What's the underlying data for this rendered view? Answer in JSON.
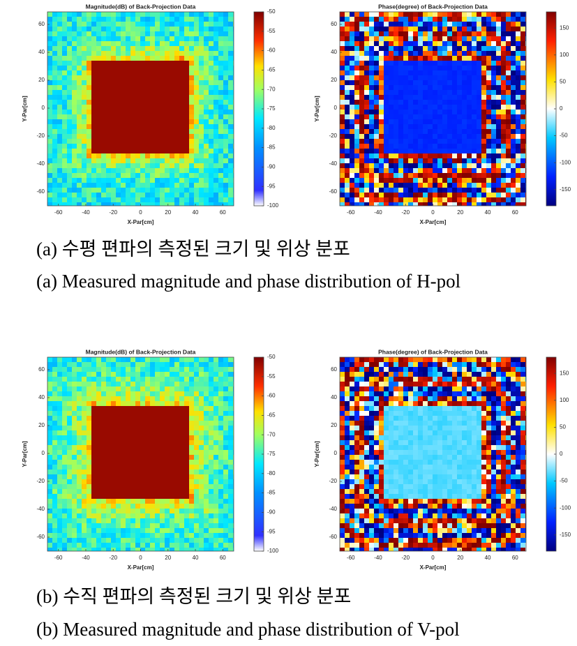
{
  "chart_data": [
    {
      "type": "heatmap",
      "title": "Magnitude(dB) of Back-Projection Data",
      "x_label": "X-Par[cm]",
      "y_label": "Y-Par[cm]",
      "xlim": [
        -68,
        68
      ],
      "xticks": [
        -60,
        -40,
        -20,
        0,
        20,
        40,
        60
      ],
      "ylim": [
        -70,
        69
      ],
      "yticks": [
        60,
        40,
        20,
        0,
        -20,
        -40,
        -60
      ],
      "colorbar": {
        "lim": [
          -100,
          -50
        ],
        "ticks": [
          -50,
          -55,
          -60,
          -65,
          -70,
          -75,
          -80,
          -85,
          -90,
          -95,
          -100
        ]
      }
    },
    {
      "type": "heatmap",
      "title": "Phase(degree) of Back-Projection Data",
      "x_label": "X-Par[cm]",
      "y_label": "Y-Par[cm]",
      "xlim": [
        -68,
        68
      ],
      "xticks": [
        -60,
        -40,
        -20,
        0,
        20,
        40,
        60
      ],
      "ylim": [
        -70,
        69
      ],
      "yticks": [
        60,
        40,
        20,
        0,
        -20,
        -40,
        -60
      ],
      "colorbar": {
        "lim": [
          -180,
          180
        ],
        "ticks": [
          150,
          100,
          50,
          0,
          -50,
          -100,
          -150
        ]
      }
    },
    {
      "type": "heatmap",
      "title": "Magnitude(dB) of Back-Projection Data",
      "x_label": "X-Par[cm]",
      "y_label": "Y-Par[cm]",
      "xlim": [
        -68,
        68
      ],
      "xticks": [
        -60,
        -40,
        -20,
        0,
        20,
        40,
        60
      ],
      "ylim": [
        -70,
        69
      ],
      "yticks": [
        60,
        40,
        20,
        0,
        -20,
        -40,
        -60
      ],
      "colorbar": {
        "lim": [
          -100,
          -50
        ],
        "ticks": [
          -50,
          -55,
          -60,
          -65,
          -70,
          -75,
          -80,
          -85,
          -90,
          -95,
          -100
        ]
      }
    },
    {
      "type": "heatmap",
      "title": "Phase(degree) of Back-Projection Data",
      "x_label": "X-Par[cm]",
      "y_label": "Y-Par[cm]",
      "xlim": [
        -68,
        68
      ],
      "xticks": [
        -60,
        -40,
        -20,
        0,
        20,
        40,
        60
      ],
      "ylim": [
        -70,
        69
      ],
      "yticks": [
        60,
        40,
        20,
        0,
        -20,
        -40,
        -60
      ],
      "colorbar": {
        "lim": [
          -180,
          180
        ],
        "ticks": [
          150,
          100,
          50,
          0,
          -50,
          -100,
          -150
        ]
      }
    }
  ],
  "captions": [
    {
      "korean": "(a) 수평 편파의 측정된 크기 및 위상 분포",
      "english": "(a) Measured magnitude and phase distribution of H-pol"
    },
    {
      "korean": "(b) 수직 편파의 측정된 크기 및 위상 분포",
      "english": "(b) Measured magnitude and phase distribution of V-pol"
    }
  ]
}
